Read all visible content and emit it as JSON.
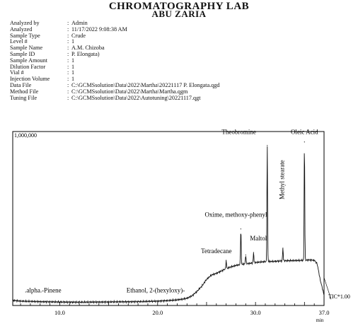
{
  "header": {
    "title": "CHROMATOGRAPHY LAB",
    "subtitle": "ABU ZARIA"
  },
  "meta": [
    {
      "label": "Analyzed by",
      "value": "Admin"
    },
    {
      "label": "Analyzed",
      "value": "11/17/2022 9:08:38 AM"
    },
    {
      "label": "Sample Type",
      "value": "Crude"
    },
    {
      "label": "Level #",
      "value": "1"
    },
    {
      "label": "Sample Name",
      "value": "A.M. Chizoba"
    },
    {
      "label": "Sample ID",
      "value": "P. Elongata)"
    },
    {
      "label": "Sample Amount",
      "value": "1"
    },
    {
      "label": "Dilution Factor",
      "value": "1"
    },
    {
      "label": "Vial #",
      "value": "1"
    },
    {
      "label": "Injection Volume",
      "value": "1"
    },
    {
      "label": "Data File",
      "value": "C:\\GCMSsolution\\Data\\2022\\Martha\\20221117 P. Elongata.qgd"
    },
    {
      "label": "Method File",
      "value": "C:\\GCMSsolution\\Data\\2022\\Martha\\Martha.qgm"
    },
    {
      "label": "Tuning File",
      "value": "C:\\GCMSsolution\\Data\\2022\\Autotuning\\20221117.qgt"
    }
  ],
  "chart_data": {
    "type": "line",
    "title": "",
    "xlabel": "min",
    "ylabel": "",
    "xlim": [
      5.2,
      37.0
    ],
    "ylim": [
      0,
      1000000
    ],
    "y_top_label": "1,000,000",
    "xticks": [
      10.0,
      20.0,
      30.0,
      37.0
    ],
    "xtick_labels": [
      "10.0",
      "20.0",
      "30.0",
      "37.0"
    ],
    "series": [
      {
        "name": "TIC*1.00",
        "x": [
          5.2,
          6.0,
          8.0,
          10.0,
          12.0,
          14.0,
          16.0,
          18.0,
          20.0,
          21.0,
          22.0,
          22.5,
          23.0,
          23.5,
          24.0,
          24.5,
          25.0,
          25.5,
          26.0,
          26.5,
          27.0,
          27.5,
          28.0,
          28.5,
          29.0,
          29.5,
          30.0,
          30.5,
          31.0,
          31.5,
          32.0,
          32.5,
          33.0,
          33.5,
          34.0,
          34.5,
          35.0,
          35.5,
          36.0,
          36.3,
          36.6,
          37.0
        ],
        "y": [
          30000,
          25000,
          22000,
          20000,
          19000,
          20000,
          21000,
          22000,
          25000,
          28000,
          32000,
          36000,
          42000,
          55000,
          80000,
          110000,
          150000,
          175000,
          185000,
          198000,
          212000,
          222000,
          230000,
          236000,
          240000,
          243000,
          247000,
          250000,
          252000,
          253000,
          254000,
          256000,
          257000,
          258000,
          258000,
          259000,
          260000,
          262000,
          260000,
          240000,
          150000,
          60000
        ]
      }
    ],
    "peaks": [
      {
        "x": 27.0,
        "y": 260000
      },
      {
        "x": 28.5,
        "y": 440000
      },
      {
        "x": 29.0,
        "y": 290000
      },
      {
        "x": 29.8,
        "y": 305000
      },
      {
        "x": 31.2,
        "y": 920000
      },
      {
        "x": 32.8,
        "y": 330000
      },
      {
        "x": 35.0,
        "y": 940000
      }
    ],
    "annotations": [
      {
        "text": ".alpha.-Pinene",
        "x": 8.3,
        "y": 75000,
        "rotate": false
      },
      {
        "text": "Ethanol, 2-(hexyloxy)-",
        "x": 19.8,
        "y": 75000,
        "rotate": false
      },
      {
        "text": "Tetradecane",
        "x": 26.0,
        "y": 300000,
        "rotate": false
      },
      {
        "text": "Oxime, methoxy-phenyl",
        "x": 28.0,
        "y": 510000,
        "rotate": false
      },
      {
        "text": "Maltol",
        "x": 30.3,
        "y": 375000,
        "rotate": false
      },
      {
        "text": "Theobromine",
        "x": 28.3,
        "y": 985000,
        "rotate": false
      },
      {
        "text": "Methyl stearate",
        "x": 32.9,
        "y": 610000,
        "rotate": true
      },
      {
        "text": "Oleic Acid",
        "x": 35.0,
        "y": 985000,
        "rotate": false
      }
    ]
  }
}
